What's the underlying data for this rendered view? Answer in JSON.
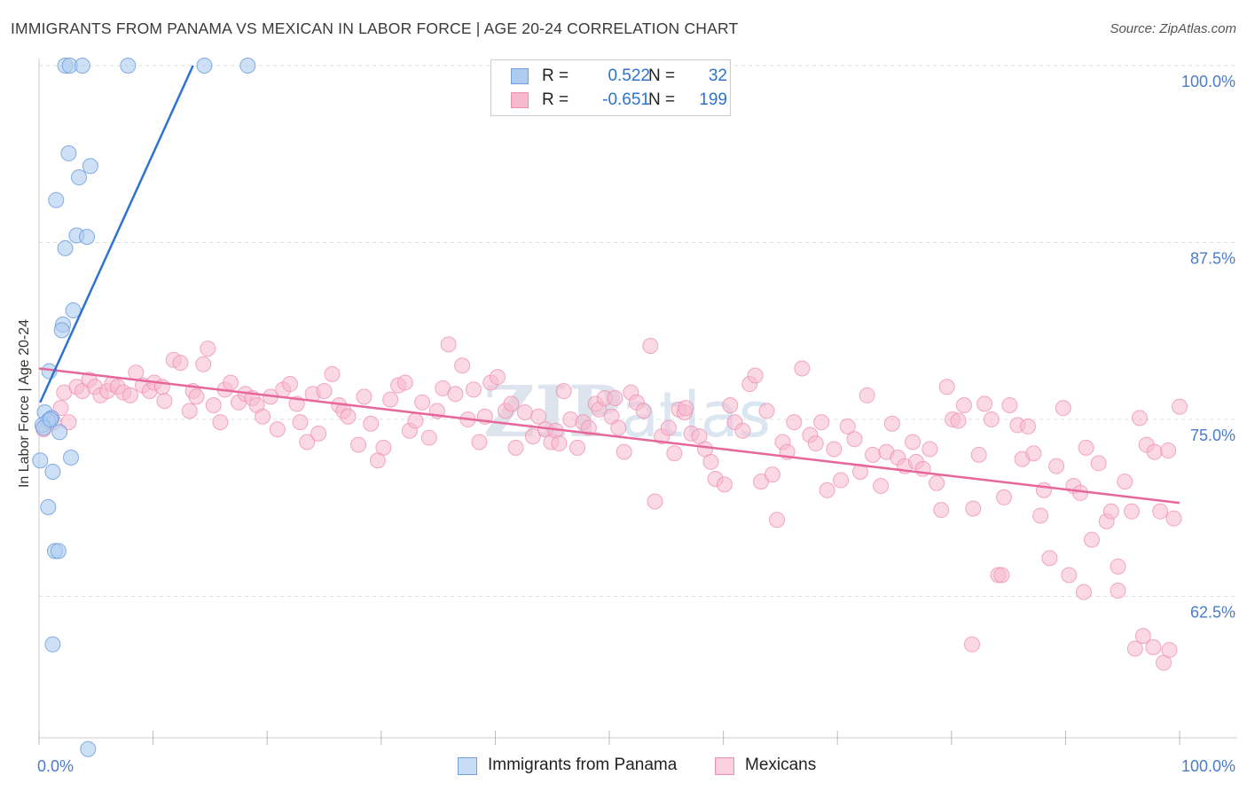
{
  "header": {
    "title": "IMMIGRANTS FROM PANAMA VS MEXICAN IN LABOR FORCE | AGE 20-24 CORRELATION CHART",
    "source": "Source: ZipAtlas.com"
  },
  "watermark": "ZIPatlas",
  "legend": {
    "rows": [
      {
        "r_label": "R =",
        "r_value": "0.522",
        "n_label": "N =",
        "n_value": "32",
        "color": "#aecbf0"
      },
      {
        "r_label": "R =",
        "r_value": "-0.651",
        "n_label": "N =",
        "n_value": "199",
        "color": "#f7b9cd"
      }
    ]
  },
  "bottom_legend": [
    {
      "label": "Immigrants from Panama",
      "color": "#aecbf0"
    },
    {
      "label": "Mexicans",
      "color": "#f7b9cd"
    }
  ],
  "chart_data": {
    "type": "scatter",
    "title": "IMMIGRANTS FROM PANAMA VS MEXICAN IN LABOR FORCE | AGE 20-24 CORRELATION CHART",
    "xlabel": "",
    "ylabel": "In Labor Force | Age 20-24",
    "xlim": [
      0,
      100
    ],
    "ylim": [
      52.5,
      100.5
    ],
    "x_tick_labels": [
      "0.0%",
      "100.0%"
    ],
    "y_ticks": [
      62.5,
      75.0,
      87.5,
      100.0
    ],
    "y_tick_labels": [
      "62.5%",
      "75.0%",
      "87.5%",
      "100.0%"
    ],
    "grid": true,
    "legend_position": "top-center",
    "colors": {
      "blue": "#6fa0de",
      "blue_fill": "#aecbf0",
      "pink": "#ee8eb0",
      "pink_fill": "#f7b9cd",
      "blue_line": "#2e72d2",
      "pink_line": "#e8679a",
      "tick_text": "#4a7bcc"
    },
    "series": [
      {
        "name": "Immigrants from Panama",
        "color": "#6fa0de",
        "points": [
          [
            2.3,
            100.0
          ],
          [
            2.7,
            100.0
          ],
          [
            3.8,
            100.0
          ],
          [
            7.8,
            100.0
          ],
          [
            14.5,
            100.0
          ],
          [
            18.3,
            100.0
          ],
          [
            2.6,
            93.8
          ],
          [
            4.5,
            92.9
          ],
          [
            3.5,
            92.1
          ],
          [
            1.5,
            90.5
          ],
          [
            3.3,
            88.0
          ],
          [
            4.2,
            87.9
          ],
          [
            2.3,
            87.1
          ],
          [
            3.0,
            82.7
          ],
          [
            2.1,
            81.7
          ],
          [
            2.0,
            81.3
          ],
          [
            0.9,
            78.4
          ],
          [
            0.5,
            75.5
          ],
          [
            1.1,
            75.1
          ],
          [
            0.8,
            74.9
          ],
          [
            0.3,
            74.6
          ],
          [
            1.8,
            74.1
          ],
          [
            2.8,
            72.3
          ],
          [
            0.1,
            72.1
          ],
          [
            1.2,
            71.3
          ],
          [
            0.8,
            68.8
          ],
          [
            1.4,
            65.7
          ],
          [
            1.7,
            65.7
          ],
          [
            1.2,
            59.1
          ],
          [
            4.3,
            51.7
          ],
          [
            0.4,
            74.4
          ],
          [
            1.0,
            75.0
          ]
        ],
        "trend": {
          "x": [
            0.1,
            13.5
          ],
          "y": [
            76.2,
            100.0
          ]
        }
      },
      {
        "name": "Mexicans",
        "color": "#ee8eb0",
        "points": [
          [
            0.4,
            74.3
          ],
          [
            1.3,
            74.8
          ],
          [
            1.9,
            75.8
          ],
          [
            2.2,
            76.9
          ],
          [
            2.6,
            74.8
          ],
          [
            3.3,
            77.3
          ],
          [
            3.8,
            77.0
          ],
          [
            4.4,
            77.8
          ],
          [
            4.9,
            77.3
          ],
          [
            5.4,
            76.7
          ],
          [
            6.0,
            77.0
          ],
          [
            6.4,
            77.5
          ],
          [
            6.9,
            77.3
          ],
          [
            7.4,
            76.9
          ],
          [
            8.0,
            76.7
          ],
          [
            8.5,
            78.3
          ],
          [
            9.1,
            77.4
          ],
          [
            9.7,
            77.0
          ],
          [
            10.1,
            77.6
          ],
          [
            10.8,
            77.3
          ],
          [
            11.0,
            76.3
          ],
          [
            11.8,
            79.2
          ],
          [
            12.4,
            79.0
          ],
          [
            13.2,
            75.6
          ],
          [
            13.5,
            77.0
          ],
          [
            13.8,
            76.6
          ],
          [
            14.4,
            78.9
          ],
          [
            14.8,
            80.0
          ],
          [
            15.3,
            76.0
          ],
          [
            15.9,
            74.8
          ],
          [
            16.3,
            77.1
          ],
          [
            16.8,
            77.6
          ],
          [
            17.5,
            76.2
          ],
          [
            18.1,
            76.8
          ],
          [
            18.7,
            76.5
          ],
          [
            19.1,
            76.0
          ],
          [
            19.6,
            75.2
          ],
          [
            20.3,
            76.6
          ],
          [
            20.9,
            74.3
          ],
          [
            21.4,
            77.1
          ],
          [
            22.0,
            77.5
          ],
          [
            22.6,
            76.1
          ],
          [
            22.9,
            74.8
          ],
          [
            23.5,
            73.4
          ],
          [
            24.0,
            76.8
          ],
          [
            24.5,
            74.0
          ],
          [
            25.0,
            77.0
          ],
          [
            25.7,
            78.2
          ],
          [
            26.3,
            76.0
          ],
          [
            26.7,
            75.6
          ],
          [
            27.1,
            75.2
          ],
          [
            28.0,
            73.2
          ],
          [
            28.5,
            76.6
          ],
          [
            29.1,
            74.7
          ],
          [
            29.7,
            72.1
          ],
          [
            30.2,
            73.0
          ],
          [
            30.8,
            76.4
          ],
          [
            31.5,
            77.4
          ],
          [
            32.1,
            77.6
          ],
          [
            32.5,
            74.2
          ],
          [
            33.0,
            74.9
          ],
          [
            33.6,
            76.2
          ],
          [
            34.2,
            73.7
          ],
          [
            34.9,
            75.6
          ],
          [
            35.4,
            77.2
          ],
          [
            35.9,
            80.3
          ],
          [
            36.5,
            76.8
          ],
          [
            37.1,
            78.8
          ],
          [
            37.6,
            75.0
          ],
          [
            38.1,
            77.1
          ],
          [
            38.6,
            73.4
          ],
          [
            39.1,
            75.2
          ],
          [
            39.6,
            77.6
          ],
          [
            40.2,
            78.0
          ],
          [
            40.9,
            75.6
          ],
          [
            41.4,
            76.1
          ],
          [
            41.8,
            73.0
          ],
          [
            42.6,
            75.5
          ],
          [
            43.3,
            73.8
          ],
          [
            43.8,
            75.2
          ],
          [
            44.4,
            74.3
          ],
          [
            44.9,
            73.4
          ],
          [
            45.3,
            74.2
          ],
          [
            45.6,
            73.3
          ],
          [
            46.0,
            77.0
          ],
          [
            46.6,
            75.0
          ],
          [
            47.2,
            73.0
          ],
          [
            47.7,
            74.8
          ],
          [
            48.2,
            74.4
          ],
          [
            48.8,
            76.1
          ],
          [
            49.1,
            75.7
          ],
          [
            49.6,
            76.5
          ],
          [
            50.2,
            75.2
          ],
          [
            50.8,
            74.4
          ],
          [
            51.3,
            72.7
          ],
          [
            51.9,
            76.9
          ],
          [
            52.4,
            76.2
          ],
          [
            53.0,
            75.6
          ],
          [
            53.6,
            80.2
          ],
          [
            54.0,
            69.2
          ],
          [
            54.6,
            73.8
          ],
          [
            55.2,
            74.4
          ],
          [
            55.7,
            72.6
          ],
          [
            56.1,
            75.7
          ],
          [
            56.6,
            75.5
          ],
          [
            57.2,
            74.0
          ],
          [
            57.9,
            73.8
          ],
          [
            58.4,
            72.9
          ],
          [
            58.9,
            72.0
          ],
          [
            59.3,
            70.8
          ],
          [
            60.1,
            70.4
          ],
          [
            60.6,
            76.0
          ],
          [
            61.0,
            74.8
          ],
          [
            61.7,
            74.2
          ],
          [
            62.3,
            77.5
          ],
          [
            62.8,
            78.1
          ],
          [
            63.3,
            70.6
          ],
          [
            63.8,
            75.6
          ],
          [
            64.3,
            71.1
          ],
          [
            64.7,
            67.9
          ],
          [
            65.2,
            73.4
          ],
          [
            65.6,
            72.7
          ],
          [
            66.2,
            74.8
          ],
          [
            66.9,
            78.6
          ],
          [
            67.6,
            73.9
          ],
          [
            68.1,
            73.3
          ],
          [
            68.6,
            74.8
          ],
          [
            69.1,
            70.0
          ],
          [
            69.7,
            72.9
          ],
          [
            70.3,
            70.7
          ],
          [
            70.9,
            74.5
          ],
          [
            71.5,
            73.6
          ],
          [
            72.0,
            71.3
          ],
          [
            72.6,
            76.7
          ],
          [
            73.1,
            72.5
          ],
          [
            73.8,
            70.3
          ],
          [
            74.3,
            72.7
          ],
          [
            74.8,
            74.7
          ],
          [
            75.3,
            72.3
          ],
          [
            75.9,
            71.7
          ],
          [
            76.6,
            73.4
          ],
          [
            76.9,
            72.0
          ],
          [
            77.5,
            71.5
          ],
          [
            78.1,
            72.9
          ],
          [
            78.7,
            70.5
          ],
          [
            79.1,
            68.6
          ],
          [
            79.6,
            77.3
          ],
          [
            80.1,
            75.0
          ],
          [
            80.6,
            74.9
          ],
          [
            81.1,
            76.0
          ],
          [
            81.9,
            68.7
          ],
          [
            82.4,
            72.5
          ],
          [
            82.9,
            76.1
          ],
          [
            83.5,
            75.0
          ],
          [
            84.1,
            64.0
          ],
          [
            84.6,
            69.5
          ],
          [
            85.1,
            76.0
          ],
          [
            85.8,
            74.6
          ],
          [
            86.2,
            72.2
          ],
          [
            86.7,
            74.5
          ],
          [
            87.2,
            72.6
          ],
          [
            87.8,
            68.2
          ],
          [
            88.1,
            70.0
          ],
          [
            88.6,
            65.2
          ],
          [
            89.2,
            71.7
          ],
          [
            89.8,
            75.8
          ],
          [
            90.3,
            64.0
          ],
          [
            90.7,
            70.3
          ],
          [
            91.3,
            69.8
          ],
          [
            91.8,
            73.0
          ],
          [
            92.3,
            66.5
          ],
          [
            92.9,
            71.9
          ],
          [
            93.6,
            67.8
          ],
          [
            94.0,
            68.5
          ],
          [
            94.6,
            64.6
          ],
          [
            95.2,
            70.6
          ],
          [
            95.8,
            68.5
          ],
          [
            96.5,
            75.1
          ],
          [
            97.1,
            73.2
          ],
          [
            97.8,
            72.7
          ],
          [
            98.3,
            68.5
          ],
          [
            99.0,
            72.8
          ],
          [
            99.5,
            68.0
          ],
          [
            100.0,
            75.9
          ],
          [
            81.8,
            59.1
          ],
          [
            84.4,
            64.0
          ],
          [
            91.6,
            62.8
          ],
          [
            94.6,
            62.9
          ],
          [
            96.1,
            58.8
          ],
          [
            96.8,
            59.7
          ],
          [
            97.7,
            58.9
          ],
          [
            98.6,
            57.8
          ],
          [
            99.1,
            58.7
          ],
          [
            56.7,
            75.8
          ],
          [
            50.5,
            76.5
          ]
        ],
        "trend": {
          "x": [
            0.0,
            100.0
          ],
          "y": [
            78.6,
            69.1
          ]
        }
      }
    ]
  }
}
